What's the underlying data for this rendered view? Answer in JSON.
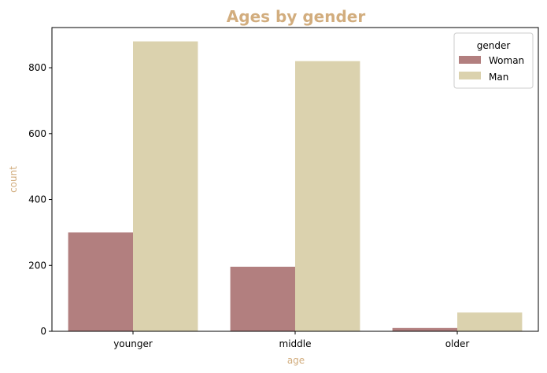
{
  "chart_data": {
    "type": "bar",
    "title": "Ages by gender",
    "xlabel": "age",
    "ylabel": "count",
    "categories": [
      "younger",
      "middle",
      "older"
    ],
    "series": [
      {
        "name": "Woman",
        "values": [
          300,
          196,
          10
        ],
        "color": "#b27f7f"
      },
      {
        "name": "Man",
        "values": [
          880,
          820,
          57
        ],
        "color": "#dbd2ae"
      }
    ],
    "ylim": [
      0,
      922
    ],
    "yticks": [
      0,
      200,
      400,
      600,
      800
    ],
    "legend": {
      "title": "gender",
      "position": "top-right"
    },
    "grid": false,
    "label_color": "#d2ad7e"
  }
}
